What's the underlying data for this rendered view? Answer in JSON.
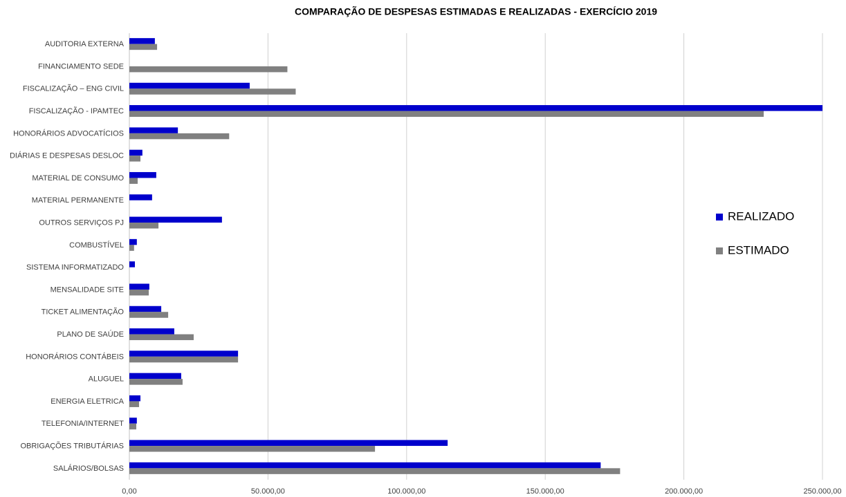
{
  "chart_data": {
    "type": "bar",
    "orientation": "horizontal",
    "title": "COMPARAÇÃO DE DESPESAS ESTIMADAS E REALIZADAS - EXERCÍCIO 2019",
    "categories": [
      "AUDITORIA EXTERNA",
      "FINANCIAMENTO SEDE",
      "FISCALIZAÇÃO – ENG CIVIL",
      "FISCALIZAÇÃO - IPAMTEC",
      "HONORÁRIOS ADVOCATÍCIOS",
      "DIÁRIAS E DESPESAS DESLOC",
      "MATERIAL DE CONSUMO",
      "MATERIAL PERMANENTE",
      "OUTROS SERVIÇOS PJ",
      "COMBUSTÍVEL",
      "SISTEMA INFORMATIZADO",
      "MENSALIDADE SITE",
      "TICKET ALIMENTAÇÃO",
      "PLANO DE SAÚDE",
      "HONORÁRIOS CONTÁBEIS",
      "ALUGUEL",
      "ENERGIA ELETRICA",
      "TELEFONIA/INTERNET",
      "OBRIGAÇÕES TRIBUTÁRIAS",
      "SALÁRIOS/BOLSAS"
    ],
    "series": [
      {
        "name": "REALIZADO",
        "color": "#0000cc",
        "values": [
          9200,
          null,
          43400,
          250000,
          17500,
          4700,
          9700,
          8200,
          33400,
          2700,
          2000,
          7200,
          11500,
          16200,
          39200,
          18700,
          4000,
          2700,
          114800,
          170000
        ]
      },
      {
        "name": "ESTIMADO",
        "color": "#808080",
        "values": [
          10000,
          57000,
          60000,
          228800,
          36000,
          4000,
          3000,
          null,
          10500,
          1700,
          null,
          7000,
          14000,
          23200,
          39200,
          19200,
          3500,
          2500,
          88600,
          177000
        ]
      }
    ],
    "xlim": [
      0,
      250000
    ],
    "xticks": [
      {
        "value": 0,
        "label": "0,00"
      },
      {
        "value": 50000,
        "label": "50.000,00"
      },
      {
        "value": 100000,
        "label": "100.000,00"
      },
      {
        "value": 150000,
        "label": "150.000,00"
      },
      {
        "value": 200000,
        "label": "200.000,00"
      },
      {
        "value": 250000,
        "label": "250.000,00"
      }
    ],
    "grid": true,
    "legend": "right"
  }
}
